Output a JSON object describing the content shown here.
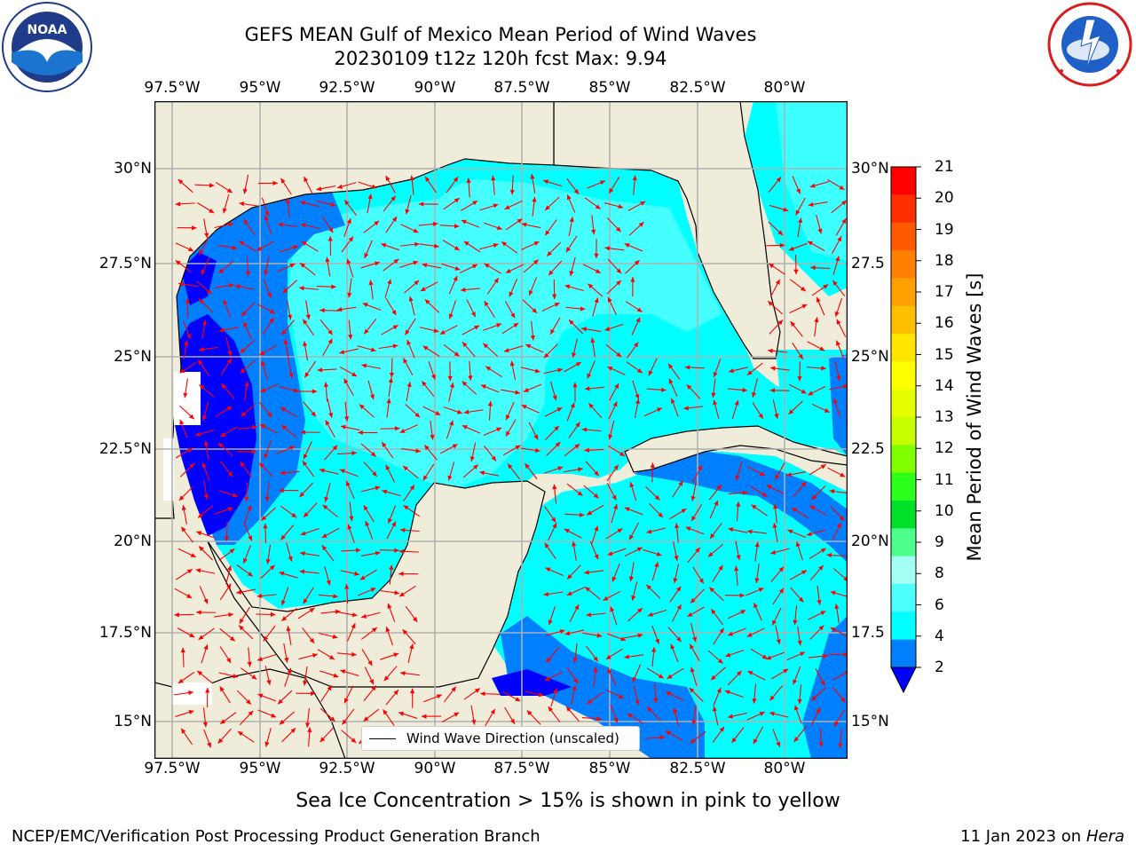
{
  "title": {
    "line1": "GEFS MEAN Gulf of Mexico Mean Period of Wind Waves",
    "line2": "20230109 t12z 120h fcst   Max: 9.94"
  },
  "logos": {
    "left": {
      "name": "noaa-logo",
      "text": "NOAA"
    },
    "right": {
      "name": "national-weather-service-logo",
      "text": "NATIONAL WEATHER SERVICE"
    }
  },
  "map": {
    "lon_ticks": [
      "97.5°W",
      "95°W",
      "92.5°W",
      "90°W",
      "87.5°W",
      "85°W",
      "82.5°W",
      "80°W"
    ],
    "lat_ticks": [
      "30°N",
      "27.5°N",
      "25°N",
      "22.5°N",
      "20°N",
      "17.5°N",
      "15°N"
    ],
    "right_lat_ticks": [
      "30°N",
      "27.5",
      "25°N",
      "22.5",
      "20°N",
      "17.5",
      "15°N"
    ],
    "land_color": "#efecda",
    "arrow_color": "#ff0000",
    "legend_label": "Wind Wave Direction (unscaled)"
  },
  "colorbar": {
    "title": "Mean Period of Wind Waves [s]",
    "labels": [
      "21",
      "20",
      "19",
      "18",
      "17",
      "16",
      "15",
      "14",
      "13",
      "12",
      "11",
      "10",
      "9",
      "8",
      "6",
      "4",
      "2"
    ],
    "colors": [
      "#ff0000",
      "#ff2e00",
      "#ff5a00",
      "#ff7f00",
      "#ff9f00",
      "#ffbf00",
      "#ffe600",
      "#ffff00",
      "#e6ff00",
      "#c8ff00",
      "#7fff00",
      "#2bff1a",
      "#00e02a",
      "#4dff8a",
      "#a4fff4",
      "#4dffff",
      "#00ffff",
      "#0080ff",
      "#0000ff"
    ]
  },
  "sea_ice_note": "Sea Ice Concentration > 15% is shown in pink to yellow",
  "footer": {
    "left": "NCEP/EMC/Verification Post Processing Product Generation Branch",
    "date": "11 Jan 2023 on ",
    "machine": "Hera"
  }
}
